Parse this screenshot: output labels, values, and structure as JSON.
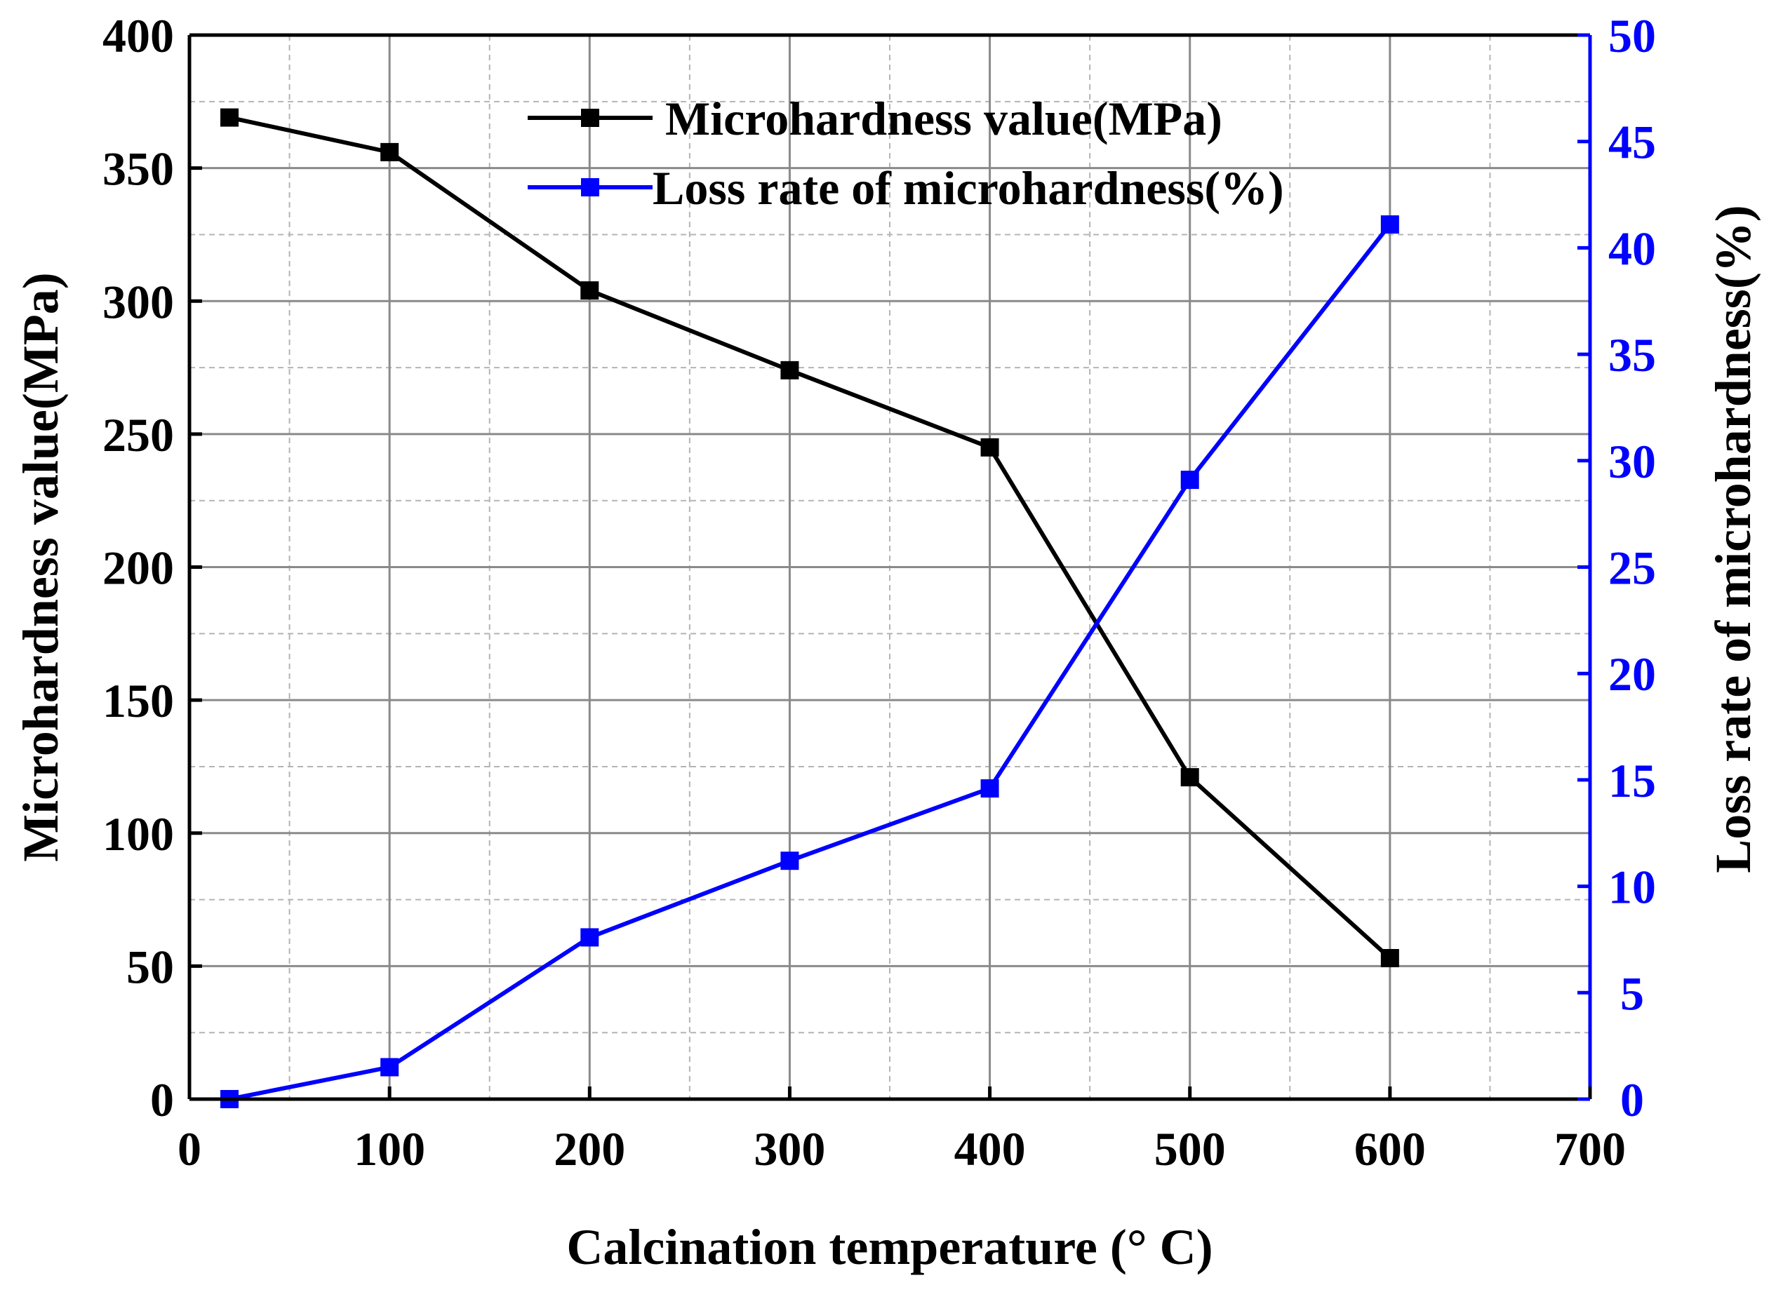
{
  "chart_data": {
    "type": "line",
    "title": "",
    "xlabel": "Calcination temperature (° C)",
    "ylabel_left": "Microhardness value(MPa)",
    "ylabel_right": "Loss rate of microhardness(%)",
    "x": [
      20,
      100,
      200,
      300,
      400,
      500,
      600
    ],
    "xlim": [
      0,
      700
    ],
    "x_ticks": [
      0,
      100,
      200,
      300,
      400,
      500,
      600,
      700
    ],
    "x_tick_labels": [
      "0",
      "100",
      "200",
      "300",
      "400",
      "500",
      "600",
      "700"
    ],
    "ylim_left": [
      0,
      400
    ],
    "y_ticks_left": [
      0,
      50,
      100,
      150,
      200,
      250,
      300,
      350,
      400
    ],
    "y_tick_labels_left": [
      "0",
      "50",
      "100",
      "150",
      "200",
      "250",
      "300",
      "350",
      "400"
    ],
    "ylim_right": [
      0,
      50
    ],
    "y_ticks_right": [
      0,
      5,
      10,
      15,
      20,
      25,
      30,
      35,
      40,
      45,
      50
    ],
    "y_tick_labels_right": [
      "0",
      "5",
      "10",
      "15",
      "20",
      "25",
      "30",
      "35",
      "40",
      "45",
      "50"
    ],
    "grid": true,
    "legend_position": "top-center",
    "series": [
      {
        "name": "Microhardness value(MPa)",
        "axis": "left",
        "color": "#000000",
        "marker": "square",
        "values": [
          369,
          356,
          304,
          274,
          245,
          121,
          53
        ]
      },
      {
        "name": "Loss rate of microhardness(%)",
        "axis": "right",
        "color": "#0000ff",
        "marker": "square",
        "values": [
          0,
          1.5,
          7.6,
          11.2,
          14.6,
          29.1,
          41.1
        ]
      }
    ]
  }
}
